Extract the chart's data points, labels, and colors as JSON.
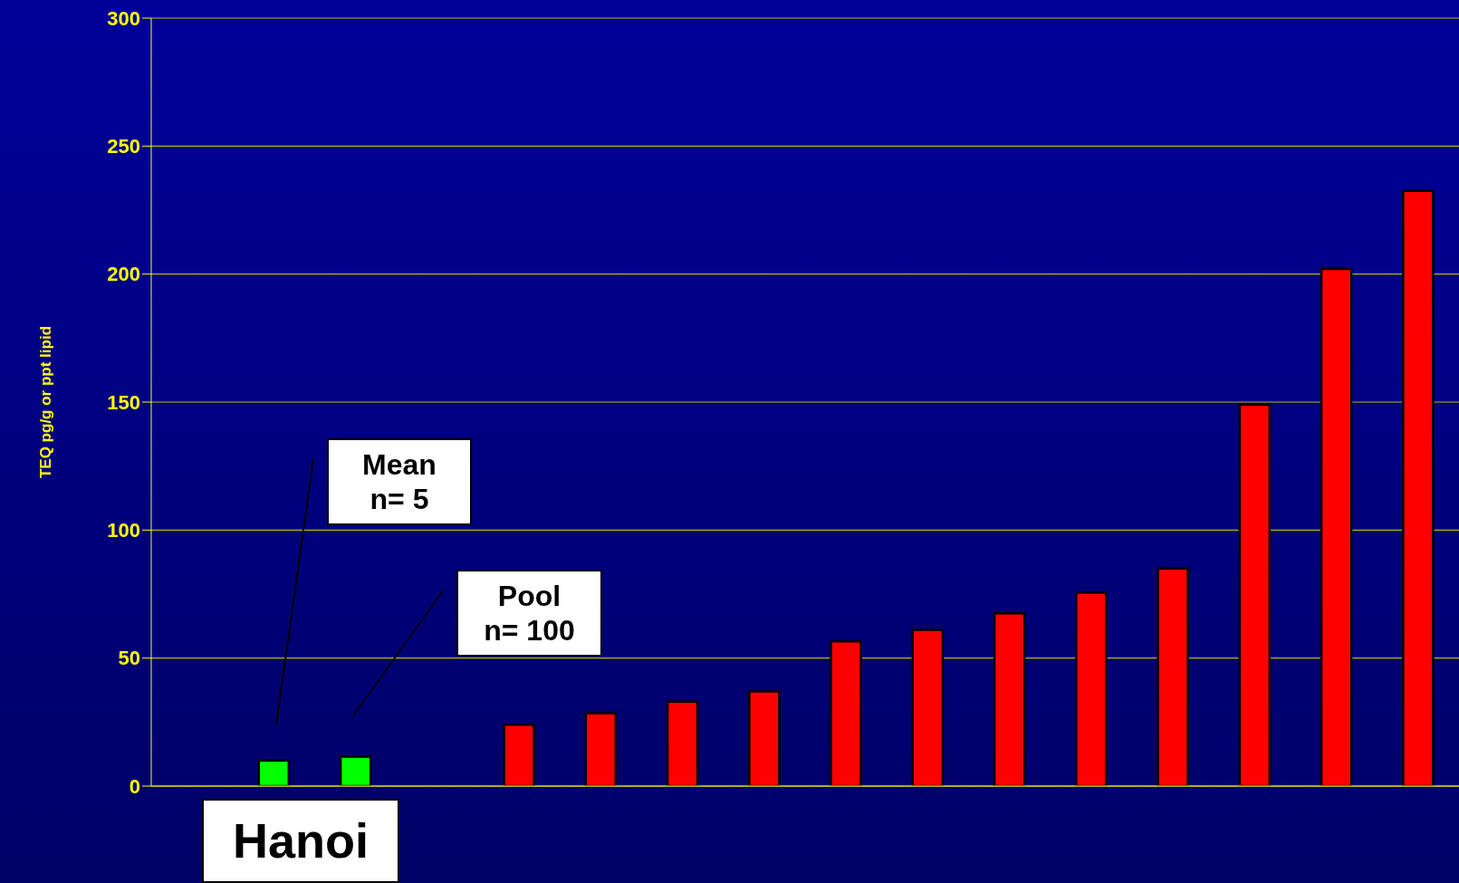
{
  "chart_data": {
    "type": "bar",
    "ylabel": "TEQ pg/g or ppt lipid",
    "categories": [
      null,
      null,
      null,
      null,
      null,
      null,
      null,
      null,
      null,
      null,
      null,
      null,
      null,
      null,
      null,
      null
    ],
    "values": [
      null,
      10,
      11.5,
      null,
      24,
      28.5,
      33,
      37,
      56.5,
      61,
      67.5,
      75.5,
      85,
      149,
      202,
      232.5
    ],
    "colors": [
      null,
      "#00ff00",
      "#00ff00",
      null,
      "#ff0000",
      "#ff0000",
      "#ff0000",
      "#ff0000",
      "#ff0000",
      "#ff0000",
      "#ff0000",
      "#ff0000",
      "#ff0000",
      "#ff0000",
      "#ff0000",
      "#ff0000"
    ],
    "ylim": [
      0,
      300
    ],
    "yticks": [
      0,
      50,
      100,
      150,
      200,
      250,
      300
    ],
    "grid": "y",
    "annotations": [
      "Mean\nn= 5",
      "Pool\nn= 100",
      "Hanoi"
    ]
  }
}
